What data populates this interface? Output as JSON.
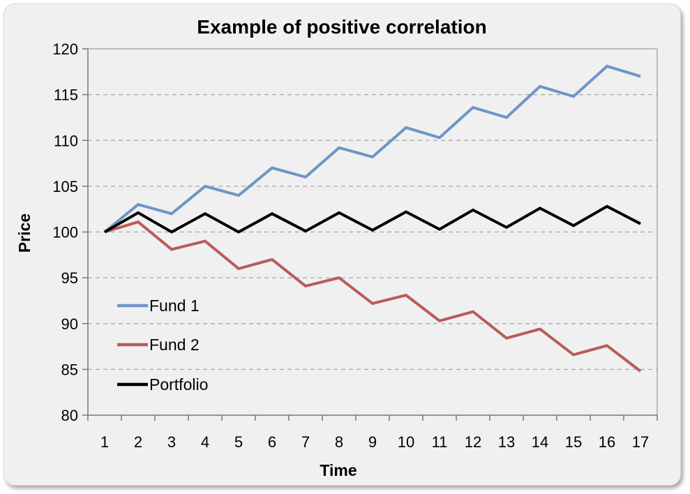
{
  "chart_data": {
    "type": "line",
    "title": "Example of positive correlation",
    "xlabel": "Time",
    "ylabel": "Price",
    "x": [
      1,
      2,
      3,
      4,
      5,
      6,
      7,
      8,
      9,
      10,
      11,
      12,
      13,
      14,
      15,
      16,
      17
    ],
    "ylim": [
      80,
      120
    ],
    "yticks": [
      80,
      85,
      90,
      95,
      100,
      105,
      110,
      115,
      120
    ],
    "grid": "horizontal-dashed",
    "legend_position": "left",
    "series": [
      {
        "name": "Fund 1",
        "color": "#7094c8",
        "values": [
          100,
          103,
          102,
          105,
          104,
          107,
          106,
          109.2,
          108.2,
          111.4,
          110.3,
          113.6,
          112.5,
          115.9,
          114.8,
          118.1,
          117
        ]
      },
      {
        "name": "Fund 2",
        "color": "#b85c5a",
        "values": [
          100,
          101.1,
          98.1,
          99,
          96,
          97,
          94.1,
          95,
          92.2,
          93.1,
          90.3,
          91.3,
          88.4,
          89.4,
          86.6,
          87.6,
          84.8
        ]
      },
      {
        "name": "Portfolio",
        "color": "#000000",
        "values": [
          100,
          102.1,
          100,
          102,
          100,
          102,
          100.1,
          102.1,
          100.2,
          102.2,
          100.3,
          102.4,
          100.5,
          102.6,
          100.7,
          102.8,
          100.9
        ]
      }
    ]
  }
}
